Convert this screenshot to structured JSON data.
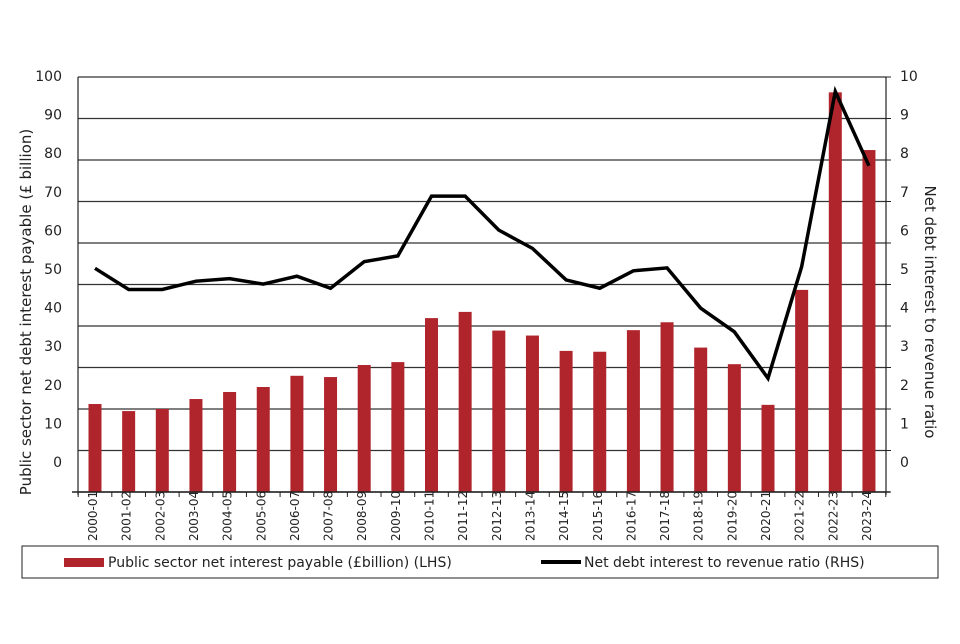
{
  "chart_data": {
    "type": "bar",
    "title": "",
    "categories": [
      "2000-01",
      "2001-02",
      "2002-03",
      "2003-04",
      "2004-05",
      "2005-06",
      "2006-07",
      "2007-08",
      "2008-09",
      "2009-10",
      "2010-11",
      "2011-12",
      "2012-13",
      "2013-14",
      "2014-15",
      "2015-16",
      "2016-17",
      "2017-18",
      "2018-19",
      "2019-20",
      "2020-21",
      "2021-22",
      "2022-23",
      "2023-24"
    ],
    "series": [
      {
        "name": "Public sector net interest payable (£billion) (LHS)",
        "type": "bar",
        "axis": "left",
        "color": "#b0252c",
        "values": [
          21.2,
          19.5,
          20.0,
          22.4,
          24.1,
          25.3,
          28.0,
          27.7,
          30.6,
          31.3,
          41.9,
          43.4,
          38.9,
          37.7,
          34.0,
          33.8,
          39.0,
          40.9,
          34.8,
          30.8,
          21.0,
          48.7,
          96.3,
          82.4
        ]
      },
      {
        "name": "Net debt interest to revenue ratio (RHS)",
        "type": "line",
        "axis": "right",
        "color": "#000000",
        "values": [
          5.39,
          4.88,
          4.88,
          5.08,
          5.14,
          5.01,
          5.2,
          4.91,
          5.55,
          5.69,
          7.13,
          7.13,
          6.31,
          5.87,
          5.11,
          4.91,
          5.33,
          5.4,
          4.43,
          3.86,
          2.74,
          5.43,
          9.65,
          7.86
        ]
      }
    ],
    "ylabel": "Public sector net debt interest payable (£ billion)",
    "y2label": "Net debt interest to revenue ratio",
    "xlabel": "",
    "ylim": [
      0,
      100
    ],
    "y2lim": [
      0,
      10
    ],
    "yticks": [
      "100",
      "90",
      "80",
      "70",
      "60",
      "50",
      "40",
      "30",
      "20",
      "10",
      "0"
    ],
    "y2ticks": [
      "10",
      "9",
      "8",
      "7",
      "6",
      "5",
      "4",
      "3",
      "2",
      "1",
      "0"
    ],
    "grid": true,
    "legend_position": "bottom"
  }
}
